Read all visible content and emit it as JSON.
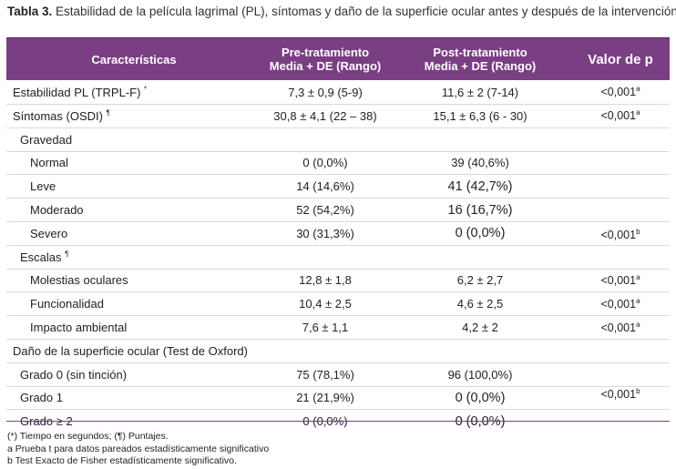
{
  "caption": {
    "label": "Tabla 3.",
    "text": " Estabilidad de la película lagrimal (PL), síntomas y daño de la superficie ocular antes y después de la intervención."
  },
  "header": {
    "col1": "Características",
    "col2_line1": "Pre-tratamiento",
    "col2_line2": "Media + DE (Rango)",
    "col3_line1": "Post-tratamiento",
    "col3_line2": "Media + DE (Rango)",
    "col4": "Valor de p"
  },
  "rows": {
    "r1": {
      "label": "Estabilidad PL (TRPL-F)",
      "mark": "*",
      "pre": "7,3 ± 0,9 (5-9)",
      "post": "11,6 ± 2 (7-14)",
      "p": "<0,001",
      "pmark": "a"
    },
    "r2": {
      "label": "Síntomas (OSDI)",
      "mark": "¶",
      "pre": "30,8 ± 4,1 (22 – 38)",
      "post": "15,1 ± 6,3 (6 - 30)",
      "p": "<0,001",
      "pmark": "a"
    },
    "r3": {
      "label": "Gravedad"
    },
    "r4": {
      "label": "Normal",
      "pre": "0  (0,0%)",
      "post": "39 (40,6%)"
    },
    "r5": {
      "label": "Leve",
      "pre": "14 (14,6%)",
      "post": "41 (42,7%)"
    },
    "r6": {
      "label": "Moderado",
      "pre": "52 (54,2%)",
      "post": "16 (16,7%)"
    },
    "r7": {
      "label": "Severo",
      "pre": "30 (31,3%)",
      "post": "0 (0,0%)"
    },
    "r8": {
      "label": "Escalas",
      "mark": "¶"
    },
    "r9": {
      "label": "Molestias oculares",
      "pre": "12,8 ± 1,8",
      "post": "6,2 ± 2,7",
      "p": "<0,001",
      "pmark": "a"
    },
    "r10": {
      "label": "Funcionalidad",
      "pre": "10,4 ± 2,5",
      "post": "4,6 ± 2,5",
      "p": "<0,001",
      "pmark": "a"
    },
    "r11": {
      "label": "Impacto ambiental",
      "pre": "7,6 ± 1,1",
      "post": "4,2 ± 2",
      "p": "<0,001",
      "pmark": "a"
    },
    "r12": {
      "label": "Daño de la superficie ocular (Test de Oxford)"
    },
    "r13": {
      "label": "Grado 0 (sin tinción)",
      "pre": "75 (78,1%)",
      "post": "96 (100,0%)"
    },
    "r14": {
      "label": "Grado 1",
      "pre": "21 (21,9%)",
      "post": "0 (0,0%)"
    },
    "r15": {
      "label": "Grado ≥ 2",
      "pre": "0 (0,0%)",
      "post": "0 (0,0%)"
    }
  },
  "merged": {
    "gravedad_p": "<0,001",
    "gravedad_mark": "b",
    "oxford_p": "<0,001",
    "oxford_mark": "b"
  },
  "notes": {
    "n1": "(*) Tiempo en segundos; (¶) Puntajes.",
    "n2": "a Prueba t para datos pareados estadísticamente significativo",
    "n3": "b Test Exacto de Fisher estadísticamente significativo."
  }
}
